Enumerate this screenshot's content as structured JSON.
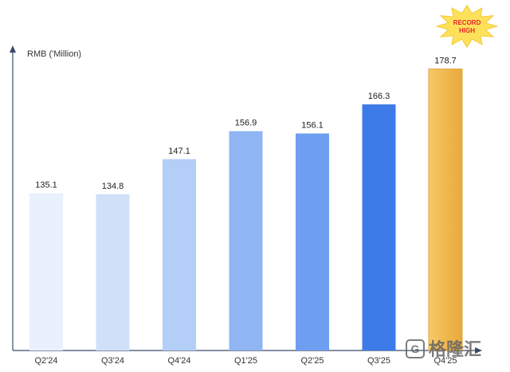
{
  "chart_data": {
    "type": "bar",
    "ylabel": "RMB ('Million)",
    "categories": [
      "Q2'24",
      "Q3'24",
      "Q4'24",
      "Q1'25",
      "Q2'25",
      "Q3'25",
      "Q4'25"
    ],
    "values": [
      135.1,
      134.8,
      147.1,
      156.9,
      156.1,
      166.3,
      178.7
    ],
    "value_labels": [
      "135.1",
      "134.8",
      "147.1",
      "156.9",
      "156.1",
      "166.3",
      "178.7"
    ],
    "bar_colors": [
      "#e8f1fc",
      "#cfe1f9",
      "#b3cff7",
      "#8fb6f3",
      "#6d9ef0",
      "#3d7be8",
      "#f2b84e"
    ],
    "ylim": [
      80,
      180
    ],
    "grid": false,
    "annotation": {
      "line1": "RECORD",
      "line2": "HIGH",
      "color": "#e8262b",
      "burst_color": "#fde15a"
    }
  },
  "watermark": {
    "logo": "G",
    "text": "格隆汇"
  }
}
